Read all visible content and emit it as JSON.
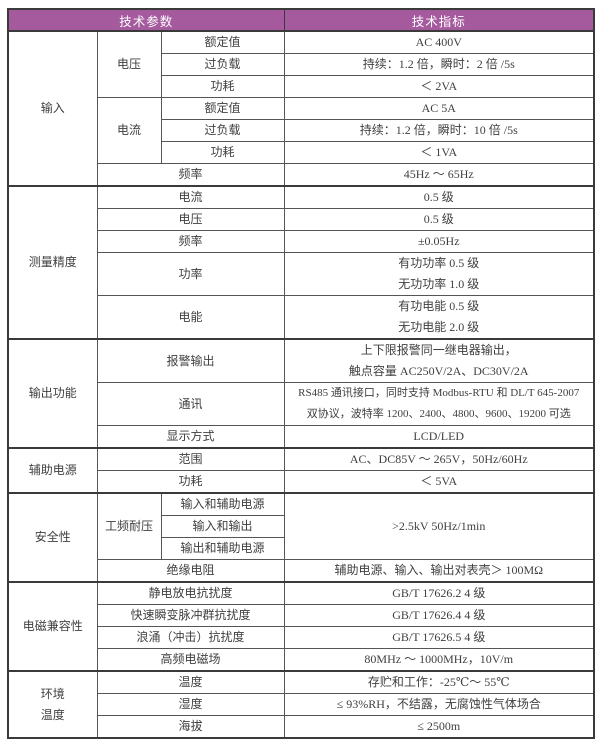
{
  "header": {
    "params_label": "技术参数",
    "specs_label": "技术指标"
  },
  "colors": {
    "header_bg": "#a55a9e",
    "header_text": "#ffffff",
    "outer_border": "#3a3a3a",
    "inner_border": "#555555",
    "text": "#3f3f3f"
  },
  "table": {
    "rows": [
      {
        "section": true,
        "h": "s",
        "cells": [
          {
            "name": "category-input",
            "rowspan": 7,
            "lines": [
              "输入"
            ]
          },
          {
            "name": "param-voltage",
            "rowspan": 3,
            "lines": [
              "电压"
            ]
          },
          {
            "name": "param-voltage-rated",
            "lines": [
              "额定值"
            ]
          },
          {
            "name": "value-voltage-rated",
            "lines": [
              "AC 400V"
            ]
          }
        ]
      },
      {
        "h": "s",
        "cells": [
          {
            "name": "param-voltage-overload",
            "lines": [
              "过负载"
            ]
          },
          {
            "name": "value-voltage-overload",
            "lines": [
              "持续：1.2 倍，瞬时：2 倍 /5s"
            ]
          }
        ]
      },
      {
        "h": "s",
        "cells": [
          {
            "name": "param-voltage-consumption",
            "lines": [
              "功耗"
            ]
          },
          {
            "name": "value-voltage-consumption",
            "lines": [
              "＜ 2VA"
            ]
          }
        ]
      },
      {
        "h": "s",
        "cells": [
          {
            "name": "param-current",
            "rowspan": 3,
            "lines": [
              "电流"
            ]
          },
          {
            "name": "param-current-rated",
            "lines": [
              "额定值"
            ]
          },
          {
            "name": "value-current-rated",
            "lines": [
              "AC 5A"
            ]
          }
        ]
      },
      {
        "h": "s",
        "cells": [
          {
            "name": "param-current-overload",
            "lines": [
              "过负载"
            ]
          },
          {
            "name": "value-current-overload",
            "lines": [
              "持续：1.2 倍，瞬时：10 倍 /5s"
            ]
          }
        ]
      },
      {
        "h": "s",
        "cells": [
          {
            "name": "param-current-consumption",
            "lines": [
              "功耗"
            ]
          },
          {
            "name": "value-current-consumption",
            "lines": [
              "＜ 1VA"
            ]
          }
        ]
      },
      {
        "h": "s",
        "cells": [
          {
            "name": "param-input-frequency",
            "colspan": 2,
            "lines": [
              "频率"
            ]
          },
          {
            "name": "value-input-frequency",
            "lines": [
              "45Hz ～ 65Hz"
            ]
          }
        ]
      },
      {
        "section": true,
        "h": "s",
        "cells": [
          {
            "name": "category-measure-accuracy",
            "rowspan": 5,
            "lines": [
              "测量精度"
            ]
          },
          {
            "name": "param-current-accuracy",
            "colspan": 2,
            "lines": [
              "电流"
            ]
          },
          {
            "name": "value-current-accuracy",
            "lines": [
              "0.5 级"
            ]
          }
        ]
      },
      {
        "h": "s",
        "cells": [
          {
            "name": "param-voltage-accuracy",
            "colspan": 2,
            "lines": [
              "电压"
            ]
          },
          {
            "name": "value-voltage-accuracy",
            "lines": [
              "0.5 级"
            ]
          }
        ]
      },
      {
        "h": "s",
        "cells": [
          {
            "name": "param-frequency-accuracy",
            "colspan": 2,
            "lines": [
              "频率"
            ]
          },
          {
            "name": "value-frequency-accuracy",
            "lines": [
              "±0.05Hz"
            ]
          }
        ]
      },
      {
        "h": "d",
        "cells": [
          {
            "name": "param-power-accuracy",
            "colspan": 2,
            "lines": [
              "功率"
            ]
          },
          {
            "name": "value-power-accuracy",
            "lines": [
              "有功功率 0.5 级",
              "无功功率 1.0 级"
            ]
          }
        ]
      },
      {
        "h": "d",
        "cells": [
          {
            "name": "param-energy-accuracy",
            "colspan": 2,
            "lines": [
              "电能"
            ]
          },
          {
            "name": "value-energy-accuracy",
            "lines": [
              "有功电能 0.5 级",
              "无功电能 2.0 级"
            ]
          }
        ]
      },
      {
        "section": true,
        "h": "d",
        "cells": [
          {
            "name": "category-output-function",
            "rowspan": 3,
            "lines": [
              "输出功能"
            ]
          },
          {
            "name": "param-alarm-output",
            "colspan": 2,
            "lines": [
              "报警输出"
            ]
          },
          {
            "name": "value-alarm-output",
            "lines": [
              "上下限报警同一继电器输出，",
              "触点容量 AC250V/2A、DC30V/2A"
            ]
          }
        ]
      },
      {
        "h": "d",
        "cells": [
          {
            "name": "param-communication",
            "colspan": 2,
            "lines": [
              "通讯"
            ]
          },
          {
            "name": "value-communication",
            "lines": [
              "RS485 通讯接口，同时支持 Modbus-RTU 和 DL/T 645-2007",
              "双协议，波特率 1200、2400、4800、9600、19200 可选"
            ]
          }
        ]
      },
      {
        "h": "s",
        "cells": [
          {
            "name": "param-display-mode",
            "colspan": 2,
            "lines": [
              "显示方式"
            ]
          },
          {
            "name": "value-display-mode",
            "lines": [
              "LCD/LED"
            ]
          }
        ]
      },
      {
        "section": true,
        "h": "s",
        "cells": [
          {
            "name": "category-aux-power",
            "rowspan": 2,
            "lines": [
              "辅助电源"
            ]
          },
          {
            "name": "param-aux-range",
            "colspan": 2,
            "lines": [
              "范围"
            ]
          },
          {
            "name": "value-aux-range",
            "lines": [
              "AC、DC85V ～ 265V，50Hz/60Hz"
            ]
          }
        ]
      },
      {
        "h": "s",
        "cells": [
          {
            "name": "param-aux-consumption",
            "colspan": 2,
            "lines": [
              "功耗"
            ]
          },
          {
            "name": "value-aux-consumption",
            "lines": [
              "＜ 5VA"
            ]
          }
        ]
      },
      {
        "section": true,
        "h": "s",
        "cells": [
          {
            "name": "category-safety",
            "rowspan": 4,
            "lines": [
              "安全性"
            ]
          },
          {
            "name": "param-withstand-voltage",
            "rowspan": 3,
            "lines": [
              "工频耐压"
            ]
          },
          {
            "name": "param-input-aux-power",
            "lines": [
              "输入和辅助电源"
            ]
          },
          {
            "name": "value-withstand-voltage",
            "rowspan": 3,
            "lines": [
              ">2.5kV 50Hz/1min"
            ]
          }
        ]
      },
      {
        "h": "s",
        "cells": [
          {
            "name": "param-input-output",
            "lines": [
              "输入和输出"
            ]
          }
        ]
      },
      {
        "h": "s",
        "cells": [
          {
            "name": "param-output-aux-power",
            "lines": [
              "输出和辅助电源"
            ]
          }
        ]
      },
      {
        "h": "s",
        "cells": [
          {
            "name": "param-insulation-resistance",
            "colspan": 2,
            "lines": [
              "绝缘电阻"
            ]
          },
          {
            "name": "value-insulation-resistance",
            "lines": [
              "辅助电源、输入、输出对表壳＞ 100MΩ"
            ]
          }
        ]
      },
      {
        "section": true,
        "h": "s",
        "cells": [
          {
            "name": "category-emc",
            "rowspan": 4,
            "lines": [
              "电磁兼容性"
            ]
          },
          {
            "name": "param-esd-immunity",
            "colspan": 2,
            "lines": [
              "静电放电抗扰度"
            ]
          },
          {
            "name": "value-esd-immunity",
            "lines": [
              "GB/T 17626.2 4 级"
            ]
          }
        ]
      },
      {
        "h": "s",
        "cells": [
          {
            "name": "param-eft-immunity",
            "colspan": 2,
            "lines": [
              "快速瞬变脉冲群抗扰度"
            ]
          },
          {
            "name": "value-eft-immunity",
            "lines": [
              "GB/T 17626.4 4 级"
            ]
          }
        ]
      },
      {
        "h": "s",
        "cells": [
          {
            "name": "param-surge-immunity",
            "colspan": 2,
            "lines": [
              "浪涌（冲击）抗扰度"
            ]
          },
          {
            "name": "value-surge-immunity",
            "lines": [
              "GB/T 17626.5 4 级"
            ]
          }
        ]
      },
      {
        "h": "s",
        "cells": [
          {
            "name": "param-rf-field",
            "colspan": 2,
            "lines": [
              "高频电磁场"
            ]
          },
          {
            "name": "value-rf-field",
            "lines": [
              "80MHz ～ 1000MHz，10V/m"
            ]
          }
        ]
      },
      {
        "section": true,
        "h": "s",
        "cells": [
          {
            "name": "category-environment-temperature",
            "rowspan": 3,
            "lines": [
              "环境",
              "温度"
            ]
          },
          {
            "name": "param-temperature",
            "colspan": 2,
            "lines": [
              "温度"
            ]
          },
          {
            "name": "value-temperature",
            "lines": [
              "存贮和工作：-25℃～ 55℃"
            ]
          }
        ]
      },
      {
        "h": "s",
        "cells": [
          {
            "name": "param-humidity",
            "colspan": 2,
            "lines": [
              "湿度"
            ]
          },
          {
            "name": "value-humidity",
            "lines": [
              "≤ 93%RH，不结露，无腐蚀性气体场合"
            ]
          }
        ]
      },
      {
        "h": "s",
        "cells": [
          {
            "name": "param-altitude",
            "colspan": 2,
            "lines": [
              "海拔"
            ]
          },
          {
            "name": "value-altitude",
            "lines": [
              "≤ 2500m"
            ]
          }
        ]
      }
    ]
  }
}
